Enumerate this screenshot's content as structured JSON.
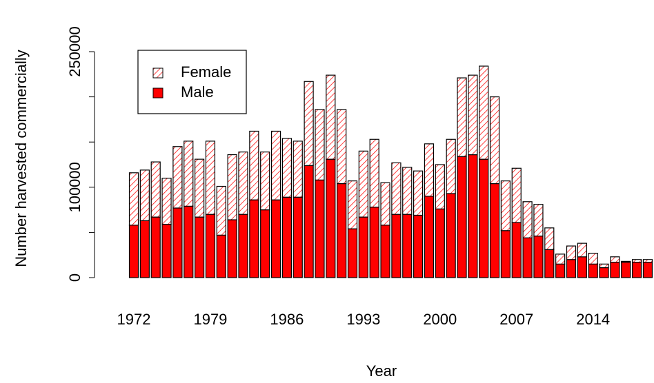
{
  "chart_data": {
    "type": "stacked_bar",
    "x_label": "Year",
    "y_label": "Number harvested commercially",
    "categories": [
      "1972",
      null,
      null,
      null,
      null,
      null,
      null,
      "1979",
      null,
      null,
      null,
      null,
      null,
      null,
      "1986",
      null,
      null,
      null,
      null,
      null,
      null,
      "1993",
      null,
      null,
      null,
      null,
      null,
      null,
      "2000",
      null,
      null,
      null,
      null,
      null,
      null,
      "2007",
      null,
      null,
      null,
      null,
      null,
      null,
      "2014",
      null,
      null,
      null,
      null,
      null
    ],
    "series": [
      {
        "name": "Male",
        "color": "#ff0000",
        "hatched": false,
        "values": [
          58000,
          63000,
          67000,
          59000,
          77000,
          79000,
          67000,
          70000,
          47000,
          64000,
          70000,
          86000,
          75000,
          86000,
          89000,
          89000,
          124000,
          108000,
          131000,
          104000,
          54000,
          67000,
          78000,
          58000,
          70000,
          70000,
          69000,
          90000,
          76000,
          93000,
          134000,
          136000,
          131000,
          104000,
          52000,
          61000,
          44000,
          46000,
          31000,
          15000,
          20000,
          23000,
          15000,
          11000,
          17000,
          17000,
          17000,
          17000
        ]
      },
      {
        "name": "Female",
        "color": "#ff0000",
        "hatched": true,
        "values": [
          58000,
          56000,
          61000,
          51000,
          68000,
          72000,
          64000,
          81000,
          54000,
          72000,
          69000,
          76000,
          64000,
          76000,
          65000,
          62000,
          93000,
          78000,
          93000,
          82000,
          53000,
          73000,
          75000,
          47000,
          57000,
          52000,
          49000,
          58000,
          49000,
          60000,
          87000,
          88000,
          103000,
          96000,
          55000,
          60000,
          40000,
          35000,
          24000,
          11000,
          15000,
          15000,
          12000,
          4000,
          6000,
          1000,
          3000,
          3000
        ]
      }
    ],
    "ylim": [
      0,
      250000
    ],
    "yticks": [
      0,
      100000,
      250000
    ],
    "yminor_ticks": [
      50000,
      150000,
      200000
    ],
    "legend": "top-left"
  }
}
